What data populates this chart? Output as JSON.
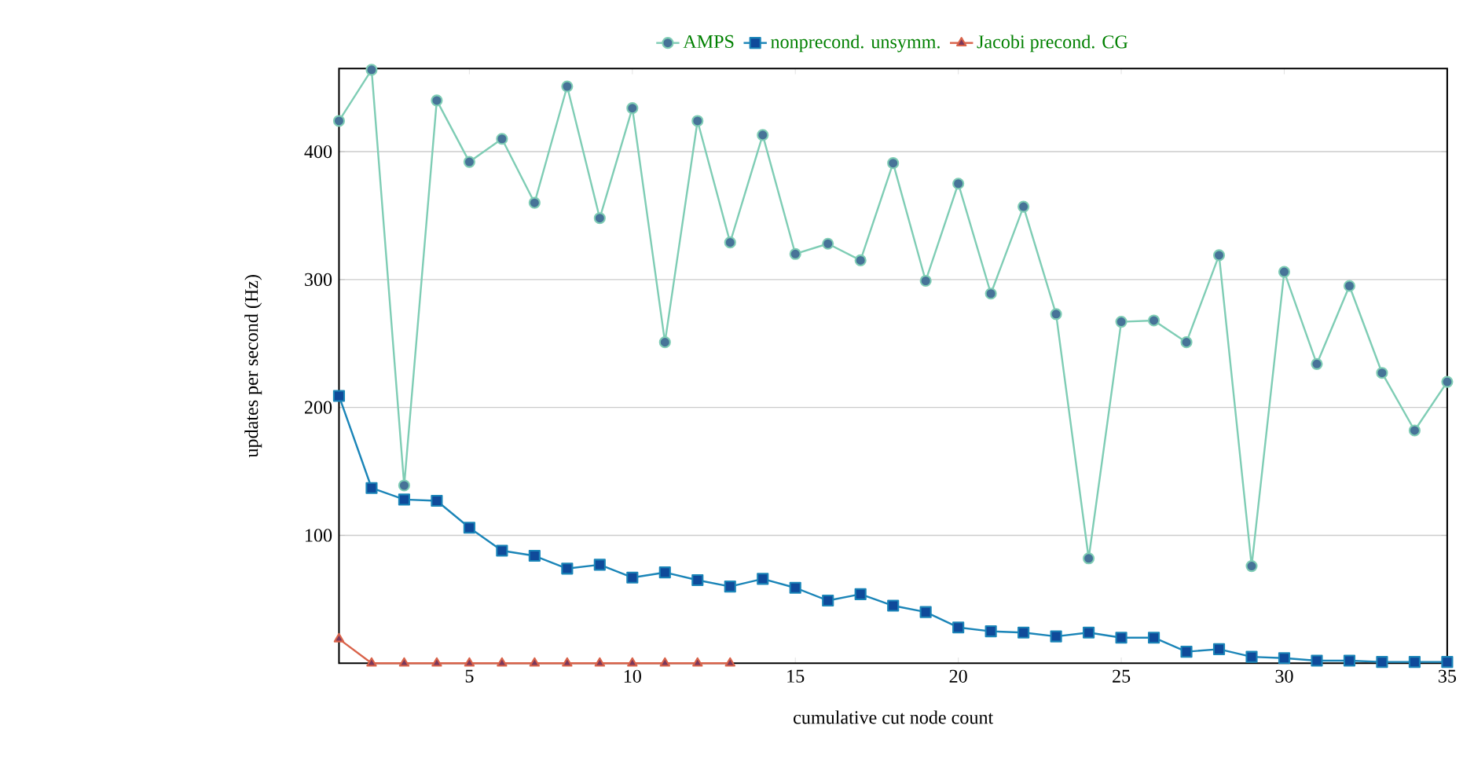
{
  "chart_data": {
    "type": "line",
    "xlabel": "cumulative cut node count",
    "ylabel": "updates per second (Hz)",
    "x": [
      1,
      2,
      3,
      4,
      5,
      6,
      7,
      8,
      9,
      10,
      11,
      12,
      13,
      14,
      15,
      16,
      17,
      18,
      19,
      20,
      21,
      22,
      23,
      24,
      25,
      26,
      27,
      28,
      29,
      30,
      31,
      32,
      33,
      34,
      35
    ],
    "xlim": [
      1,
      35
    ],
    "ylim": [
      0,
      465
    ],
    "xticks": [
      5,
      10,
      15,
      20,
      25,
      30,
      35
    ],
    "yticks": [
      100,
      200,
      300,
      400
    ],
    "grid": "y",
    "legend": "top",
    "line_style": "solid",
    "series": [
      {
        "name": "AMPS",
        "color": "#7fcdb5",
        "marker": "circle",
        "values": [
          424,
          464,
          139,
          440,
          392,
          410,
          360,
          451,
          348,
          434,
          251,
          424,
          329,
          413,
          320,
          328,
          315,
          391,
          299,
          375,
          289,
          357,
          273,
          82,
          267,
          268,
          251,
          319,
          76,
          306,
          234,
          295,
          227,
          182,
          220
        ]
      },
      {
        "name": "nonprecond. unsymm.",
        "color": "#1b85b8",
        "marker": "square",
        "values": [
          209,
          137,
          128,
          127,
          106,
          88,
          84,
          74,
          77,
          67,
          71,
          65,
          60,
          66,
          59,
          49,
          54,
          45,
          40,
          28,
          25,
          24,
          21,
          24,
          20,
          20,
          9,
          11,
          5,
          4,
          2,
          2,
          1,
          1,
          1
        ]
      },
      {
        "name": "Jacobi precond. CG",
        "color": "#d9634a",
        "marker": "triangle",
        "values": [
          19,
          0,
          0,
          0,
          0,
          0,
          0,
          0,
          0,
          0,
          0,
          0,
          0,
          null,
          null,
          null,
          null,
          null,
          null,
          null,
          null,
          null,
          null,
          null,
          null,
          null,
          null,
          null,
          null,
          null,
          null,
          null,
          null,
          null,
          null
        ]
      }
    ]
  }
}
